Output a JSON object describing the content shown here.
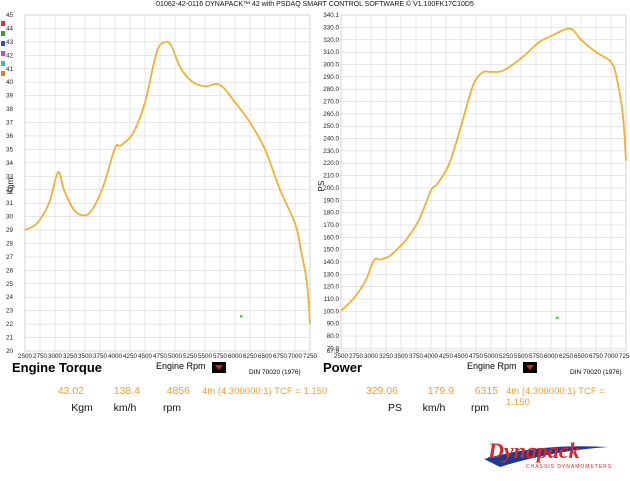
{
  "header": {
    "title": "01062-42-0116 DYNAPACK™ 42 with PSDAQ SMART CONTROL SOFTWARE © V1.100FK17C10D5"
  },
  "colors": {
    "curve": "#efb236",
    "readout": "#e8a13a",
    "marker": "#44d444",
    "grid": "#cfcfcf",
    "brand_red": "#d7262c",
    "brand_blue": "#1a3c8f"
  },
  "swatches": [
    "#e03030",
    "#30a030",
    "#3050e0",
    "#d040d0",
    "#30c0c0",
    "#e08030"
  ],
  "torque": {
    "title": "Engine Torque",
    "rpm_label": "Engine Rpm",
    "din": "DIN 70020 (1976)",
    "ylabel": "Kgm",
    "readout": {
      "value1": "43.02",
      "value2": "138.4",
      "value3": "4856",
      "unit1": "Kgm",
      "unit2": "km/h",
      "unit3": "rpm",
      "gear": "4th (4.300000:1) TCF = 1.150"
    }
  },
  "power": {
    "title": "Power",
    "rpm_label": "Engine Rpm",
    "din": "DIN 70020 (1976)",
    "ylabel": "PS",
    "readout": {
      "value1": "329.06",
      "value2": "179.9",
      "value3": "6315",
      "unit1": "PS",
      "unit2": "km/h",
      "unit3": "rpm",
      "gear": "4th (4.300000:1) TCF = 1.150"
    }
  },
  "logo": {
    "brand": "Dynapack",
    "tagline": "CHASSIS DYNAMOMETERS"
  },
  "chart_data": [
    {
      "type": "line",
      "ylabel": "Kgm",
      "xlim": [
        2500,
        7250
      ],
      "ylim": [
        20,
        45
      ],
      "x_ticks": [
        2500,
        2750,
        3000,
        3250,
        3500,
        3750,
        4000,
        4250,
        4500,
        4750,
        5000,
        5250,
        5500,
        5750,
        6000,
        6250,
        6500,
        6750,
        7000,
        7250
      ],
      "y_ticks": [
        20,
        21,
        22,
        23,
        24,
        25,
        26,
        27,
        28,
        29,
        30,
        31,
        32,
        33,
        34,
        35,
        36,
        37,
        38,
        39,
        40,
        41,
        42,
        43,
        44,
        45
      ],
      "grid": true,
      "series": [
        {
          "x": [
            2500,
            2700,
            2900,
            3050,
            3150,
            3300,
            3450,
            3600,
            3800,
            4000,
            4100,
            4300,
            4500,
            4700,
            4856,
            4950,
            5100,
            5300,
            5500,
            5750,
            6000,
            6250,
            6500,
            6750,
            7000,
            7100,
            7200,
            7250
          ],
          "y": [
            29.0,
            29.5,
            31.0,
            33.3,
            32.0,
            30.6,
            30.1,
            30.4,
            32.2,
            35.1,
            35.3,
            36.2,
            38.5,
            42.3,
            43.0,
            42.6,
            41.0,
            40.0,
            39.7,
            39.8,
            38.5,
            37.0,
            35.0,
            32.0,
            29.5,
            27.5,
            25.0,
            22.0
          ]
        }
      ],
      "marker": {
        "x": 6100,
        "y": 22.6
      }
    },
    {
      "type": "line",
      "ylabel": "PS",
      "xlim": [
        2500,
        7250
      ],
      "ylim": [
        67.9,
        340.1
      ],
      "y_range_label": [
        "67.9",
        "340.1"
      ],
      "x_ticks": [
        2500,
        2750,
        3000,
        3250,
        3500,
        3750,
        4000,
        4250,
        4500,
        4750,
        5000,
        5250,
        5500,
        5750,
        6000,
        6250,
        6500,
        6750,
        7000,
        7250
      ],
      "y_ticks": [
        70,
        80,
        90,
        100,
        110,
        120,
        130,
        140,
        150,
        160,
        170,
        180,
        190,
        200,
        210,
        220,
        230,
        240,
        250,
        260,
        270,
        280,
        290,
        300,
        310,
        320,
        330
      ],
      "grid": true,
      "series": [
        {
          "x": [
            2500,
            2700,
            2900,
            3050,
            3150,
            3300,
            3450,
            3600,
            3800,
            4000,
            4100,
            4300,
            4500,
            4700,
            4856,
            5000,
            5200,
            5500,
            5800,
            6000,
            6315,
            6500,
            6750,
            7000,
            7100,
            7200,
            7250
          ],
          "y": [
            100.5,
            110.0,
            124.0,
            141.5,
            142.0,
            144.5,
            151.0,
            159.0,
            174.0,
            198.0,
            203.0,
            219.0,
            250.0,
            283.0,
            293.5,
            294.0,
            295.0,
            305.0,
            318.0,
            323.0,
            329.1,
            320.0,
            310.0,
            302.0,
            288.0,
            258.0,
            222.0
          ]
        }
      ],
      "marker": {
        "x": 6100,
        "y": 95.0
      }
    }
  ]
}
